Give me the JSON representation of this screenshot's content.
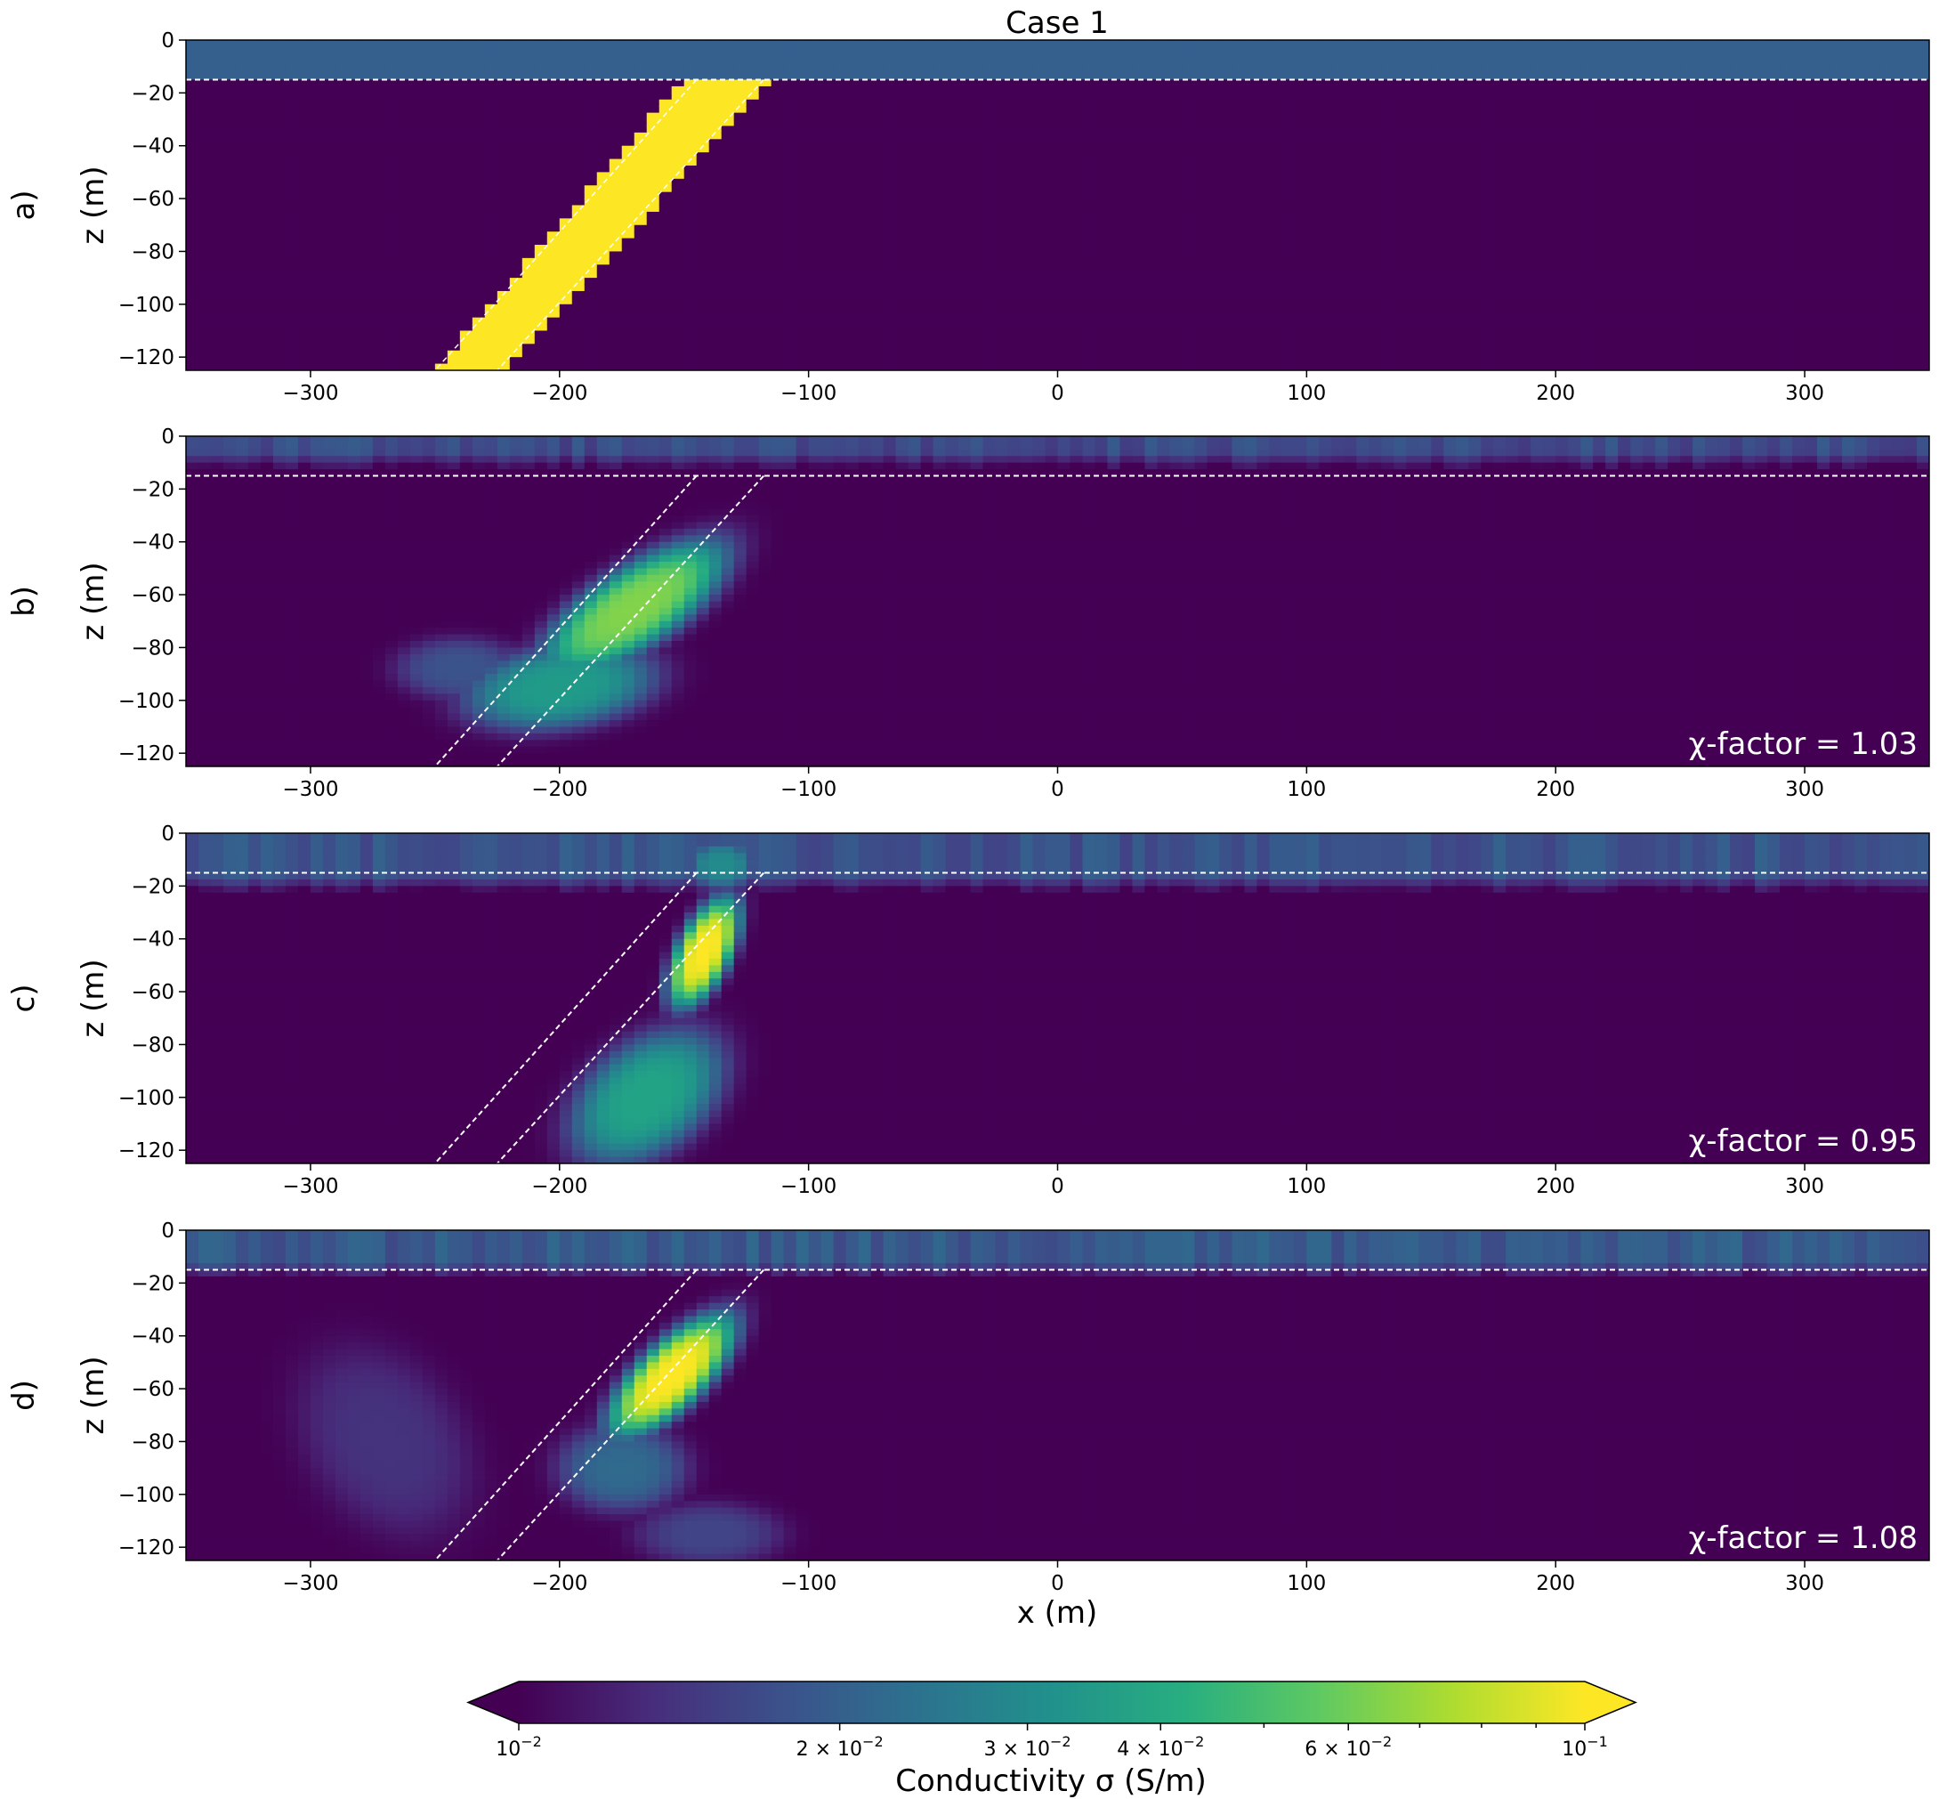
{
  "figure": {
    "title": "Case 1",
    "panel_labels": [
      "a)",
      "b)",
      "c)",
      "d)"
    ],
    "ylabel": "z (m)",
    "xlabel": "x (m)"
  },
  "colorbar": {
    "label": "Conductivity σ (S/m)",
    "scale": "log",
    "range": [
      0.01,
      0.1
    ],
    "extend": "both",
    "colormap": "viridis",
    "ticks": [
      {
        "value": 0.01,
        "base": "10",
        "exp": "−2"
      },
      {
        "value": 0.02,
        "base": "2 × 10",
        "exp": "−2"
      },
      {
        "value": 0.03,
        "base": "3 × 10",
        "exp": "−2"
      },
      {
        "value": 0.04,
        "base": "4 × 10",
        "exp": "−2"
      },
      {
        "value": 0.06,
        "base": "6 × 10",
        "exp": "−2"
      },
      {
        "value": 0.1,
        "base": "10",
        "exp": "−1"
      }
    ]
  },
  "chart_data": [
    {
      "type": "heatmap",
      "panel": "a)",
      "xlim": [
        -350,
        350
      ],
      "ylim": [
        -125,
        0
      ],
      "xticks": [
        -300,
        -200,
        -100,
        0,
        100,
        200,
        300
      ],
      "yticks": [
        0,
        -20,
        -40,
        -60,
        -80,
        -100,
        -120
      ],
      "ylabel": "z (m)",
      "overburden": {
        "depth": -15,
        "sigma": 0.02
      },
      "background_sigma": 0.01,
      "dike": {
        "top_left_x": -150,
        "top_right_x": -115,
        "top_z": -15,
        "bottom_left_x": -250,
        "bottom_right_x": -222,
        "bottom_z": -125,
        "sigma": 0.1
      },
      "overlay": {
        "horizontal_line_z": -15,
        "dike_outline": [
          [
            -145,
            -15
          ],
          [
            -250,
            -125
          ],
          [
            -118,
            -15
          ],
          [
            -225,
            -125
          ]
        ]
      },
      "annotation": ""
    },
    {
      "type": "heatmap",
      "panel": "b)",
      "xlim": [
        -350,
        350
      ],
      "ylim": [
        -125,
        0
      ],
      "xticks": [
        -300,
        -200,
        -100,
        0,
        100,
        200,
        300
      ],
      "yticks": [
        0,
        -20,
        -40,
        -60,
        -80,
        -100,
        -120
      ],
      "ylabel": "z (m)",
      "background_sigma": 0.01,
      "anomalies": [
        {
          "x": -170,
          "z": -65,
          "sx": 22,
          "sz": 22,
          "sigma": 0.065,
          "dip": -1.05
        },
        {
          "x": -200,
          "z": -95,
          "sx": 32,
          "sz": 14,
          "sigma": 0.035,
          "dip": -0.6
        },
        {
          "x": -240,
          "z": -88,
          "sx": 22,
          "sz": 10,
          "sigma": 0.018,
          "dip": 0
        }
      ],
      "near_surface": {
        "depth": -12,
        "sigma": 0.017
      },
      "overlay": {
        "horizontal_line_z": -15,
        "dike_outline": [
          [
            -145,
            -15
          ],
          [
            -250,
            -125
          ],
          [
            -118,
            -15
          ],
          [
            -225,
            -125
          ]
        ]
      },
      "annotation": "χ-factor = 1.03"
    },
    {
      "type": "heatmap",
      "panel": "c)",
      "xlim": [
        -350,
        350
      ],
      "ylim": [
        -125,
        0
      ],
      "xticks": [
        -300,
        -200,
        -100,
        0,
        100,
        200,
        300
      ],
      "yticks": [
        0,
        -20,
        -40,
        -60,
        -80,
        -100,
        -120
      ],
      "ylabel": "z (m)",
      "background_sigma": 0.01,
      "anomalies": [
        {
          "x": -142,
          "z": -45,
          "sx": 10,
          "sz": 18,
          "sigma": 0.1,
          "dip": -0.4
        },
        {
          "x": -165,
          "z": -100,
          "sx": 24,
          "sz": 22,
          "sigma": 0.038,
          "dip": -0.5
        },
        {
          "x": -135,
          "z": -12,
          "sx": 12,
          "sz": 8,
          "sigma": 0.03,
          "dip": 0
        }
      ],
      "near_surface": {
        "depth": -22,
        "sigma": 0.018
      },
      "overlay": {
        "horizontal_line_z": -15,
        "dike_outline": [
          [
            -145,
            -15
          ],
          [
            -250,
            -125
          ],
          [
            -118,
            -15
          ],
          [
            -225,
            -125
          ]
        ]
      },
      "annotation": "χ-factor = 0.95"
    },
    {
      "type": "heatmap",
      "panel": "d)",
      "xlim": [
        -350,
        350
      ],
      "ylim": [
        -125,
        0
      ],
      "xticks": [
        -300,
        -200,
        -100,
        0,
        100,
        200,
        300
      ],
      "yticks": [
        0,
        -20,
        -40,
        -60,
        -80,
        -100,
        -120
      ],
      "ylabel": "z (m)",
      "xlabel": "x (m)",
      "background_sigma": 0.01,
      "anomalies": [
        {
          "x": -155,
          "z": -55,
          "sx": 15,
          "sz": 20,
          "sigma": 0.1,
          "dip": -0.8
        },
        {
          "x": -175,
          "z": -90,
          "sx": 22,
          "sz": 14,
          "sigma": 0.022,
          "dip": 0
        },
        {
          "x": -270,
          "z": -80,
          "sx": 28,
          "sz": 30,
          "sigma": 0.014,
          "dip": 0.3
        },
        {
          "x": -140,
          "z": -115,
          "sx": 25,
          "sz": 10,
          "sigma": 0.016,
          "dip": 0
        }
      ],
      "near_surface": {
        "depth": -18,
        "sigma": 0.019
      },
      "overlay": {
        "horizontal_line_z": -15,
        "dike_outline": [
          [
            -145,
            -15
          ],
          [
            -250,
            -125
          ],
          [
            -118,
            -15
          ],
          [
            -225,
            -125
          ]
        ]
      },
      "annotation": "χ-factor = 1.08"
    }
  ]
}
